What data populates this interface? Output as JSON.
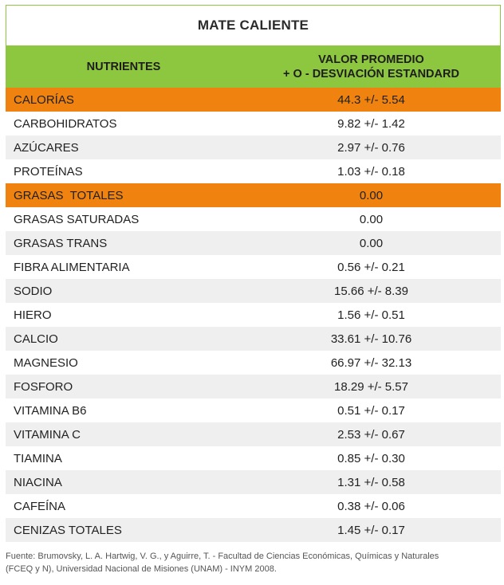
{
  "table": {
    "title": "MATE CALIENTE",
    "header": {
      "nutrients_label": "NUTRIENTES",
      "value_label_line1": "VALOR PROMEDIO",
      "value_label_line2": "+ O - DESVIACIÓN ESTANDARD"
    },
    "rows": [
      {
        "nutrient": "CALORÍAS",
        "value": "44.3 +/- 5.54",
        "highlight": "#f0830f"
      },
      {
        "nutrient": "CARBOHIDRATOS",
        "value": "9.82 +/- 1.42"
      },
      {
        "nutrient": "AZÚCARES",
        "value": "2.97 +/- 0.76"
      },
      {
        "nutrient": "PROTEÍNAS",
        "value": "1.03 +/- 0.18"
      },
      {
        "nutrient": "GRASAS  TOTALES",
        "value": "0.00",
        "highlight": "#f0830f"
      },
      {
        "nutrient": "GRASAS SATURADAS",
        "value": "0.00"
      },
      {
        "nutrient": "GRASAS TRANS",
        "value": "0.00"
      },
      {
        "nutrient": "FIBRA ALIMENTARIA",
        "value": "0.56 +/- 0.21"
      },
      {
        "nutrient": "SODIO",
        "value": "15.66 +/- 8.39"
      },
      {
        "nutrient": "HIERO",
        "value": "1.56 +/- 0.51"
      },
      {
        "nutrient": "CALCIO",
        "value": "33.61 +/- 10.76"
      },
      {
        "nutrient": "MAGNESIO",
        "value": "66.97 +/- 32.13"
      },
      {
        "nutrient": "FOSFORO",
        "value": "18.29 +/- 5.57"
      },
      {
        "nutrient": "VITAMINA B6",
        "value": "0.51 +/- 0.17"
      },
      {
        "nutrient": "VITAMINA C",
        "value": "2.53 +/- 0.67"
      },
      {
        "nutrient": "TIAMINA",
        "value": "0.85 +/- 0.30"
      },
      {
        "nutrient": "NIACINA",
        "value": "1.31 +/- 0.58"
      },
      {
        "nutrient": "CAFEÍNA",
        "value": "0.38 +/- 0.06"
      },
      {
        "nutrient": "CENIZAS TOTALES",
        "value": "1.45 +/- 0.17"
      }
    ]
  },
  "colors": {
    "header_green": "#8dc63f",
    "highlight_orange": "#f0830f",
    "row_gray": "#efefef"
  },
  "source": {
    "line1": "Fuente: Brumovsky, L. A. Hartwig, V. G., y Aguirre, T. - Facultad de Ciencias Económicas, Químicas y Naturales",
    "line2": "(FCEQ y N), Universidad Nacional de Misiones (UNAM) - INYM 2008."
  }
}
